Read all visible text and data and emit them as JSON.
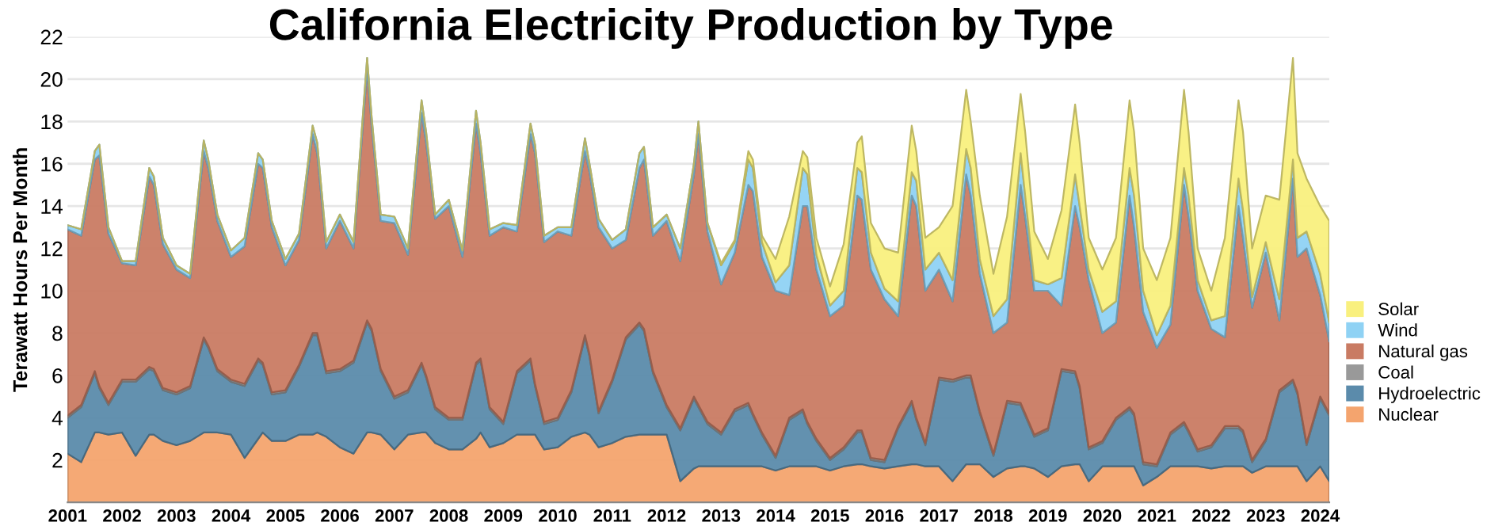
{
  "chart_data": {
    "type": "area",
    "stacked": true,
    "title": "California Electricity Production by Type",
    "ylabel": "Terawatt Hours Per Month",
    "x": [
      "2001-01",
      "2001-04",
      "2001-07",
      "2001-08",
      "2001-10",
      "2002-01",
      "2002-04",
      "2002-07",
      "2002-08",
      "2002-10",
      "2003-01",
      "2003-04",
      "2003-07",
      "2003-08",
      "2003-10",
      "2004-01",
      "2004-04",
      "2004-07",
      "2004-08",
      "2004-10",
      "2005-01",
      "2005-04",
      "2005-07",
      "2005-08",
      "2005-10",
      "2006-01",
      "2006-04",
      "2006-07",
      "2006-08",
      "2006-10",
      "2007-01",
      "2007-04",
      "2007-07",
      "2007-08",
      "2007-10",
      "2008-01",
      "2008-04",
      "2008-07",
      "2008-08",
      "2008-10",
      "2009-01",
      "2009-04",
      "2009-07",
      "2009-08",
      "2009-10",
      "2010-01",
      "2010-04",
      "2010-07",
      "2010-08",
      "2010-10",
      "2011-01",
      "2011-04",
      "2011-07",
      "2011-08",
      "2011-10",
      "2012-01",
      "2012-04",
      "2012-07",
      "2012-08",
      "2012-10",
      "2013-01",
      "2013-04",
      "2013-07",
      "2013-08",
      "2013-10",
      "2014-01",
      "2014-04",
      "2014-07",
      "2014-08",
      "2014-10",
      "2015-01",
      "2015-04",
      "2015-07",
      "2015-08",
      "2015-10",
      "2016-01",
      "2016-04",
      "2016-07",
      "2016-08",
      "2016-10",
      "2017-01",
      "2017-04",
      "2017-07",
      "2017-08",
      "2017-10",
      "2018-01",
      "2018-04",
      "2018-07",
      "2018-08",
      "2018-10",
      "2019-01",
      "2019-04",
      "2019-07",
      "2019-08",
      "2019-10",
      "2020-01",
      "2020-04",
      "2020-07",
      "2020-08",
      "2020-10",
      "2021-01",
      "2021-04",
      "2021-07",
      "2021-08",
      "2021-10",
      "2022-01",
      "2022-04",
      "2022-07",
      "2022-08",
      "2022-10",
      "2023-01",
      "2023-04",
      "2023-07",
      "2023-08",
      "2023-10",
      "2024-01",
      "2024-03"
    ],
    "series": [
      {
        "name": "Nuclear",
        "color": "#f4a46e",
        "values": [
          2.3,
          1.9,
          3.3,
          3.3,
          3.2,
          3.3,
          2.2,
          3.2,
          3.2,
          2.9,
          2.7,
          2.9,
          3.3,
          3.3,
          3.3,
          3.2,
          2.1,
          3.0,
          3.3,
          2.9,
          2.9,
          3.2,
          3.2,
          3.3,
          3.1,
          2.6,
          2.3,
          3.3,
          3.3,
          3.2,
          2.5,
          3.2,
          3.3,
          3.3,
          2.8,
          2.5,
          2.5,
          3.0,
          3.3,
          2.6,
          2.8,
          3.2,
          3.2,
          3.2,
          2.5,
          2.6,
          3.1,
          3.3,
          3.2,
          2.6,
          2.8,
          3.1,
          3.2,
          3.2,
          3.2,
          3.2,
          1.0,
          1.6,
          1.7,
          1.7,
          1.7,
          1.7,
          1.7,
          1.7,
          1.7,
          1.5,
          1.7,
          1.7,
          1.7,
          1.7,
          1.5,
          1.7,
          1.8,
          1.8,
          1.7,
          1.6,
          1.7,
          1.8,
          1.8,
          1.7,
          1.7,
          1.0,
          1.8,
          1.8,
          1.8,
          1.2,
          1.6,
          1.7,
          1.7,
          1.6,
          1.2,
          1.7,
          1.8,
          1.8,
          1.0,
          1.7,
          1.7,
          1.7,
          1.7,
          0.8,
          1.2,
          1.7,
          1.7,
          1.7,
          1.7,
          1.6,
          1.7,
          1.7,
          1.7,
          1.4,
          1.7,
          1.7,
          1.7,
          1.7,
          1.0,
          1.7,
          1.0
        ]
      },
      {
        "name": "Hydroelectric",
        "color": "#5b8bab",
        "values": [
          1.7,
          2.6,
          2.8,
          2.1,
          1.4,
          2.4,
          3.5,
          3.1,
          3.0,
          2.4,
          2.4,
          2.5,
          4.4,
          4.0,
          2.9,
          2.5,
          3.4,
          3.7,
          3.2,
          2.2,
          2.3,
          3.2,
          4.7,
          4.6,
          3.0,
          3.6,
          4.3,
          5.2,
          4.8,
          3.0,
          2.4,
          2.0,
          3.2,
          2.6,
          1.6,
          1.4,
          1.4,
          3.5,
          3.4,
          1.8,
          0.9,
          2.9,
          3.5,
          2.3,
          1.2,
          1.3,
          2.1,
          4.5,
          3.7,
          1.6,
          2.9,
          4.6,
          5.2,
          4.9,
          2.9,
          1.3,
          2.4,
          3.3,
          2.8,
          2.0,
          1.5,
          2.6,
          2.9,
          2.4,
          1.5,
          0.6,
          2.2,
          2.6,
          2.0,
          1.2,
          0.5,
          0.8,
          1.5,
          1.5,
          0.3,
          0.3,
          1.8,
          2.9,
          2.1,
          1.0,
          4.1,
          4.7,
          4.1,
          4.1,
          2.4,
          1.0,
          3.1,
          2.9,
          2.4,
          1.5,
          2.2,
          4.5,
          4.3,
          3.6,
          1.5,
          1.1,
          2.2,
          2.7,
          2.4,
          1.0,
          0.5,
          1.5,
          2.0,
          1.6,
          0.7,
          1.0,
          1.8,
          1.8,
          1.6,
          0.5,
          1.2,
          3.5,
          4.0,
          3.4,
          1.7,
          3.2,
          3.1
        ]
      },
      {
        "name": "Coal",
        "color": "#999999",
        "values": [
          0.1,
          0.1,
          0.1,
          0.1,
          0.1,
          0.1,
          0.1,
          0.1,
          0.1,
          0.1,
          0.1,
          0.1,
          0.1,
          0.1,
          0.1,
          0.1,
          0.1,
          0.1,
          0.1,
          0.1,
          0.1,
          0.1,
          0.1,
          0.1,
          0.1,
          0.1,
          0.1,
          0.1,
          0.1,
          0.1,
          0.1,
          0.1,
          0.1,
          0.1,
          0.1,
          0.1,
          0.1,
          0.1,
          0.1,
          0.1,
          0.1,
          0.1,
          0.1,
          0.1,
          0.1,
          0.1,
          0.1,
          0.1,
          0.1,
          0.1,
          0.1,
          0.1,
          0.1,
          0.1,
          0.1,
          0.1,
          0.1,
          0.1,
          0.1,
          0.1,
          0.1,
          0.1,
          0.1,
          0.1,
          0.1,
          0.1,
          0.1,
          0.1,
          0.1,
          0.1,
          0.1,
          0.1,
          0.1,
          0.1,
          0.1,
          0.1,
          0.1,
          0.1,
          0.1,
          0.1,
          0.1,
          0.1,
          0.1,
          0.1,
          0.1,
          0.1,
          0.1,
          0.1,
          0.1,
          0.1,
          0.1,
          0.1,
          0.1,
          0.1,
          0.1,
          0.1,
          0.1,
          0.1,
          0.1,
          0.1,
          0.1,
          0.1,
          0.1,
          0.1,
          0.1,
          0.1,
          0.1,
          0.1,
          0.1,
          0.1,
          0.1,
          0.1,
          0.1,
          0.1,
          0.1,
          0.1,
          0.1
        ]
      },
      {
        "name": "Natural gas",
        "color": "#c97b63",
        "values": [
          8.8,
          8.0,
          10.0,
          10.9,
          8.0,
          5.5,
          5.4,
          9.0,
          8.7,
          6.8,
          5.8,
          5.1,
          8.8,
          8.4,
          7.0,
          5.8,
          6.5,
          9.2,
          9.2,
          7.8,
          5.9,
          5.9,
          9.4,
          8.5,
          5.8,
          7.0,
          5.3,
          11.9,
          9.6,
          7.0,
          8.2,
          6.4,
          11.8,
          11.0,
          8.9,
          10.0,
          7.6,
          11.3,
          9.7,
          8.1,
          9.2,
          6.6,
          10.6,
          10.9,
          8.5,
          8.8,
          7.3,
          8.7,
          8.6,
          8.7,
          6.2,
          4.6,
          7.3,
          8.0,
          6.4,
          8.7,
          7.9,
          10.5,
          12.8,
          9.0,
          7.0,
          7.4,
          10.3,
          10.5,
          8.3,
          7.8,
          5.8,
          9.6,
          10.2,
          8.0,
          6.7,
          6.7,
          11.1,
          10.9,
          8.9,
          7.6,
          5.2,
          9.7,
          10.0,
          7.2,
          5.1,
          3.7,
          9.5,
          8.5,
          6.5,
          5.7,
          3.7,
          10.3,
          9.3,
          6.8,
          6.5,
          3.0,
          7.8,
          7.5,
          7.9,
          5.1,
          4.5,
          10.0,
          8.8,
          7.1,
          5.5,
          5.1,
          11.2,
          10.1,
          7.5,
          5.5,
          4.2,
          10.4,
          9.1,
          7.2,
          8.8,
          3.3,
          9.5,
          6.4,
          9.2,
          4.8,
          3.4
        ]
      },
      {
        "name": "Wind",
        "color": "#8fd2f4",
        "values": [
          0.2,
          0.3,
          0.4,
          0.5,
          0.3,
          0.1,
          0.2,
          0.4,
          0.4,
          0.3,
          0.2,
          0.2,
          0.5,
          0.4,
          0.3,
          0.3,
          0.4,
          0.5,
          0.4,
          0.3,
          0.3,
          0.3,
          0.4,
          0.5,
          0.3,
          0.3,
          0.3,
          0.5,
          0.4,
          0.3,
          0.3,
          0.3,
          0.6,
          0.5,
          0.2,
          0.3,
          0.3,
          0.6,
          0.5,
          0.3,
          0.2,
          0.3,
          0.5,
          0.4,
          0.3,
          0.2,
          0.4,
          0.6,
          0.4,
          0.4,
          0.4,
          0.5,
          0.7,
          0.6,
          0.4,
          0.3,
          0.6,
          0.5,
          0.6,
          0.4,
          0.9,
          0.5,
          1.2,
          1.1,
          0.7,
          0.4,
          1.4,
          1.8,
          1.5,
          0.7,
          0.5,
          0.7,
          1.3,
          1.3,
          0.8,
          0.5,
          0.7,
          1.1,
          1.2,
          1.0,
          0.8,
          1.0,
          1.2,
          1.3,
          0.7,
          0.8,
          1.1,
          1.5,
          1.0,
          0.5,
          0.3,
          1.3,
          1.5,
          1.0,
          0.5,
          1.0,
          1.0,
          1.3,
          1.5,
          1.0,
          0.6,
          0.9,
          0.8,
          1.0,
          0.5,
          0.4,
          1.0,
          1.3,
          1.3,
          0.5,
          0.5,
          1.0,
          0.9,
          0.9,
          0.8,
          1.0,
          0.9
        ]
      },
      {
        "name": "Solar",
        "color": "#f9f07e",
        "values": [
          0,
          0,
          0,
          0,
          0,
          0,
          0,
          0,
          0,
          0,
          0,
          0,
          0,
          0,
          0,
          0,
          0,
          0,
          0,
          0,
          0,
          0,
          0,
          0,
          0,
          0,
          0,
          0,
          0,
          0,
          0,
          0,
          0,
          0,
          0,
          0,
          0,
          0,
          0,
          0,
          0,
          0,
          0,
          0,
          0,
          0,
          0,
          0,
          0,
          0,
          0,
          0,
          0,
          0,
          0,
          0,
          0,
          0,
          0,
          0,
          0.1,
          0.1,
          0.4,
          0.4,
          0.3,
          1.1,
          2.3,
          0.8,
          0.8,
          0.8,
          0.9,
          2.2,
          1.2,
          1.7,
          1.4,
          1.9,
          2.3,
          2.2,
          1.4,
          1.5,
          1.2,
          3.5,
          2.8,
          2.2,
          3.0,
          2.0,
          3.9,
          2.8,
          3.0,
          2.3,
          1.2,
          3.2,
          3.3,
          3.0,
          1.5,
          2.0,
          3.0,
          3.2,
          3.0,
          2.0,
          2.6,
          3.2,
          3.7,
          3.0,
          1.5,
          1.4,
          3.7,
          3.7,
          3.7,
          2.3,
          2.2,
          4.7,
          4.8,
          4.0,
          2.5,
          3.2,
          4.8
        ]
      }
    ],
    "xlim": [
      "2001-01",
      "2024-03"
    ],
    "xticks": [
      "2001",
      "2002",
      "2003",
      "2004",
      "2005",
      "2006",
      "2007",
      "2008",
      "2009",
      "2010",
      "2011",
      "2012",
      "2013",
      "2014",
      "2015",
      "2016",
      "2017",
      "2018",
      "2019",
      "2020",
      "2021",
      "2022",
      "2023",
      "2024"
    ],
    "ylim": [
      0,
      22
    ],
    "yticks": [
      2,
      4,
      6,
      8,
      10,
      12,
      14,
      16,
      18,
      20,
      22
    ],
    "grid": "y",
    "legend": "right"
  }
}
